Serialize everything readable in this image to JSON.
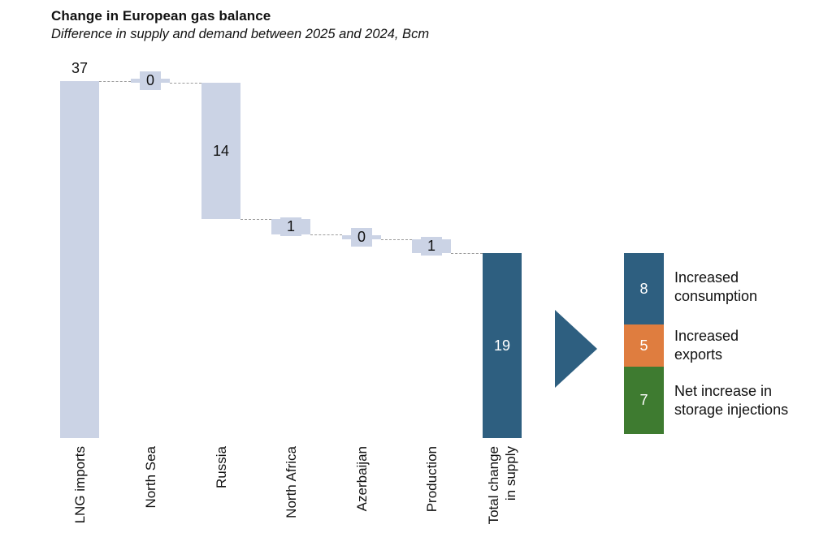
{
  "header": {
    "title": "Change in European gas balance",
    "subtitle": "Difference in supply and demand between 2025 and 2024, Bcm"
  },
  "chart_data": {
    "type": "waterfall",
    "unit": "Bcm",
    "title": "Change in European gas balance",
    "subtitle": "Difference in supply and demand between 2025 and 2024, Bcm",
    "legend_position": "none",
    "grid": false,
    "steps": [
      {
        "category": "LNG imports",
        "value": 37,
        "display": "37",
        "kind": "increase"
      },
      {
        "category": "North Sea",
        "value": 0,
        "display": "0",
        "kind": "zero"
      },
      {
        "category": "Russia",
        "value": -14,
        "display": "14",
        "kind": "decrease"
      },
      {
        "category": "North Africa",
        "value": -1,
        "display": "1",
        "kind": "decrease"
      },
      {
        "category": "Azerbaijan",
        "value": 0,
        "display": "0",
        "kind": "zero"
      },
      {
        "category": "Production",
        "value": -1,
        "display": "1",
        "kind": "decrease"
      },
      {
        "category": "Total change in supply",
        "axis_lines": [
          "Total change",
          "in supply"
        ],
        "value": 19,
        "display": "19",
        "kind": "total"
      }
    ],
    "breakdown": {
      "arrow_icon": "right-arrow",
      "segments": [
        {
          "value": 8,
          "display": "8",
          "label": "Increased consumption",
          "label_lines": [
            "Increased",
            "consumption"
          ],
          "color": "#2E5F80"
        },
        {
          "value": 5,
          "display": "5",
          "label": "Increased exports",
          "label_lines": [
            "Increased",
            "exports"
          ],
          "color": "#DF7D3F"
        },
        {
          "value": 7,
          "display": "7",
          "label": "Net increase in storage injections",
          "label_lines": [
            "Net increase in",
            "storage injections"
          ],
          "color": "#3E7B30"
        }
      ]
    },
    "colors": {
      "flow_bar": "#CBD3E5",
      "total_bar": "#2E5F80",
      "arrow": "#2E5F80",
      "connector": "#9B9B9B",
      "value_text": "#111111",
      "value_text_on_dark": "#FFFFFF"
    }
  }
}
